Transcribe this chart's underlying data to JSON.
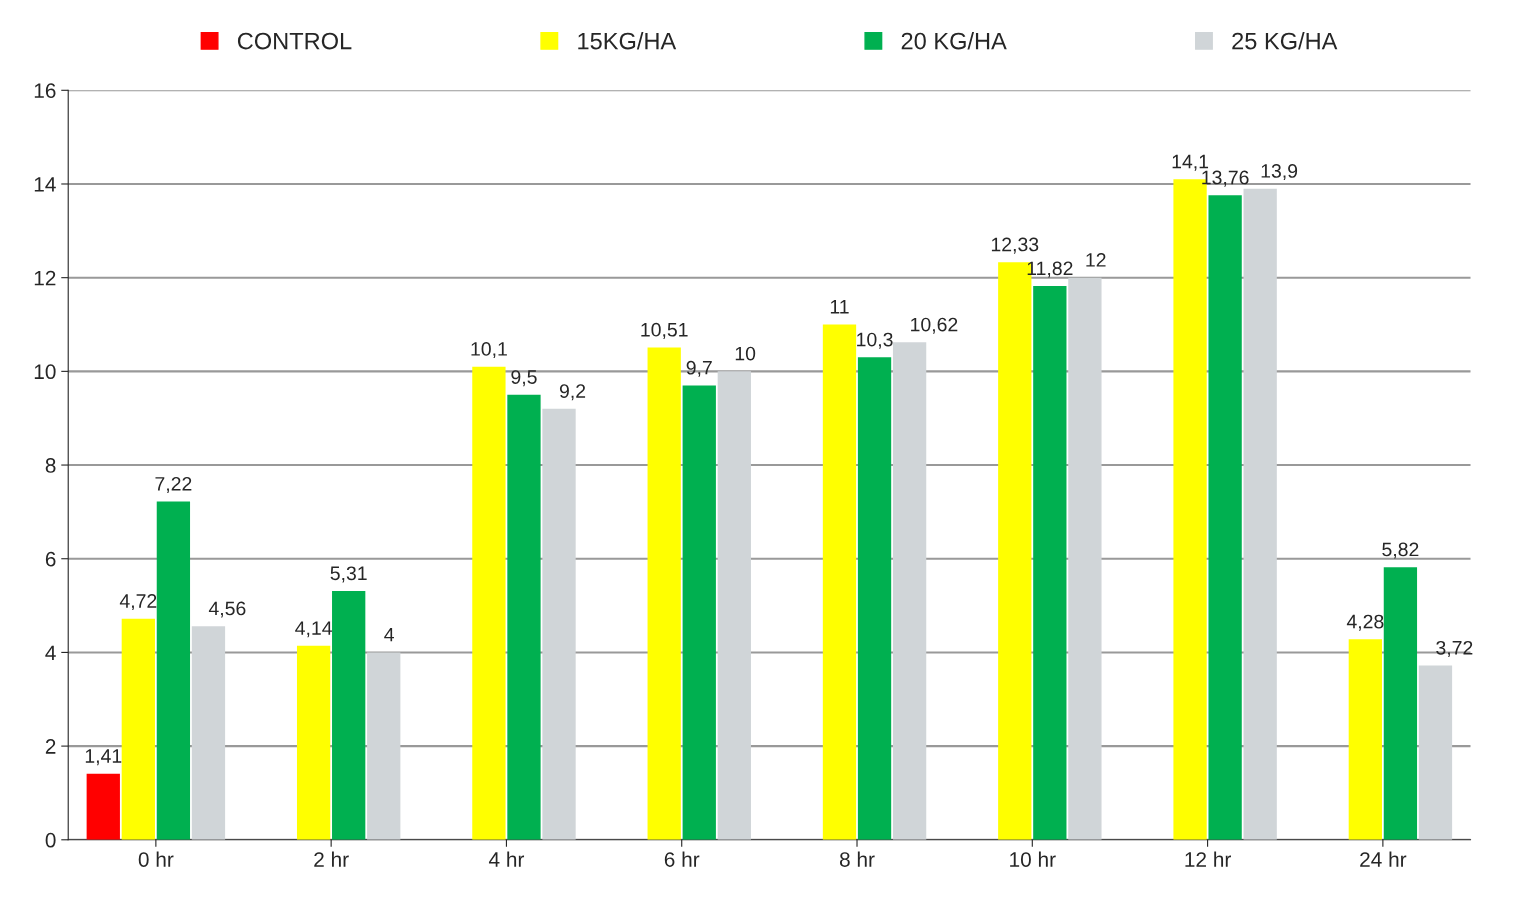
{
  "chart_data": {
    "type": "bar",
    "categories": [
      "0 hr",
      "2 hr",
      "4 hr",
      "6 hr",
      "8 hr",
      "10 hr",
      "12 hr",
      "24 hr"
    ],
    "series": [
      {
        "name": "CONTROL",
        "color": "#ff0000",
        "values": [
          1.41,
          null,
          null,
          null,
          null,
          null,
          null,
          null
        ],
        "value_labels": [
          "1,41",
          null,
          null,
          null,
          null,
          null,
          null,
          null
        ]
      },
      {
        "name": "15KG/HA",
        "color": "#ffff00",
        "values": [
          4.72,
          4.14,
          10.1,
          10.51,
          11,
          12.33,
          14.1,
          4.28
        ],
        "value_labels": [
          "4,72",
          "4,14",
          "10,1",
          "10,51",
          "11",
          "12,33",
          "14,1",
          "4,28"
        ]
      },
      {
        "name": "20 KG/HA",
        "color": "#00b050",
        "values": [
          7.22,
          5.31,
          9.5,
          9.7,
          10.3,
          11.82,
          13.76,
          5.82
        ],
        "value_labels": [
          "7,22",
          "5,31",
          "9,5",
          "9,7",
          "10,3",
          "11,82",
          "13,76",
          "5,82"
        ]
      },
      {
        "name": "25 KG/HA",
        "color": "#d0d5d8",
        "values": [
          4.56,
          4,
          9.2,
          10,
          10.62,
          12,
          13.9,
          3.72
        ],
        "value_labels": [
          "4,56",
          "4",
          "9,2",
          "10",
          "10,62",
          "12",
          "13,9",
          "3,72"
        ]
      }
    ],
    "ylim": [
      0,
      16
    ],
    "yticks": [
      0,
      2,
      4,
      6,
      8,
      10,
      12,
      14,
      16
    ],
    "grid": "y",
    "legend": "top"
  }
}
